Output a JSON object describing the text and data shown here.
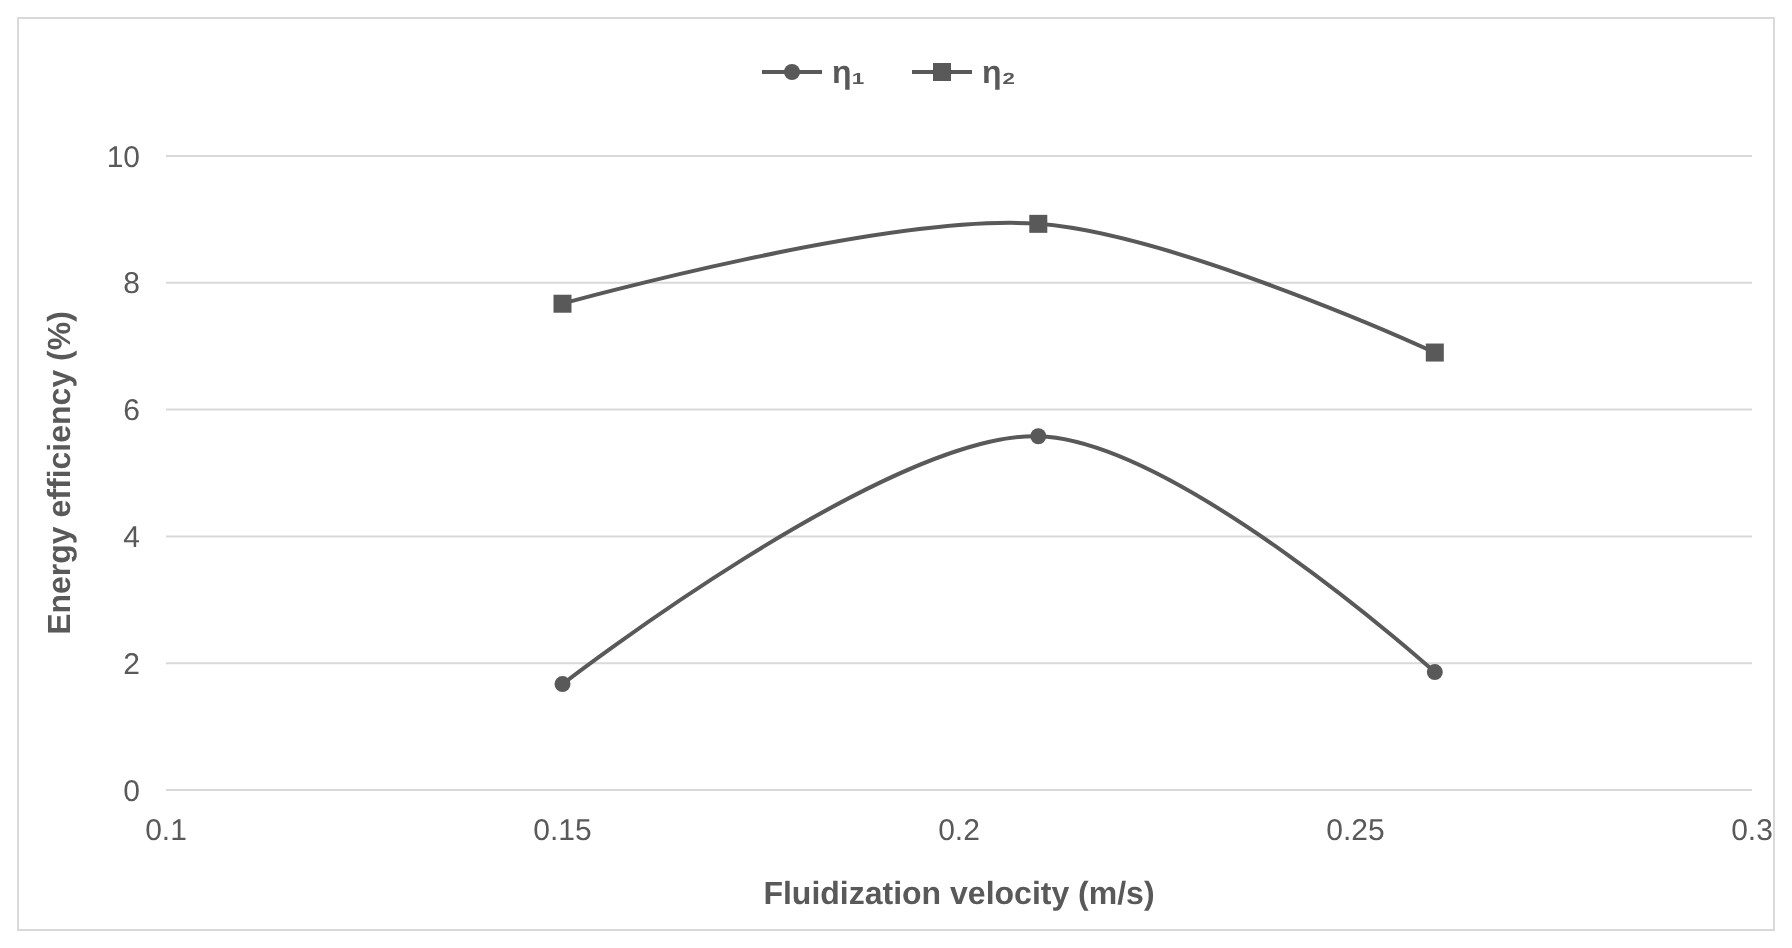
{
  "chart_data": {
    "type": "line",
    "xlabel": "Fluidization velocity (m/s)",
    "ylabel": "Energy efficiency (%)",
    "x": [
      0.15,
      0.21,
      0.26
    ],
    "series": [
      {
        "name": "η₁",
        "color": "#595959",
        "values": [
          1.67,
          5.58,
          1.86
        ],
        "marker": "circle"
      },
      {
        "name": "η₂",
        "color": "#595959",
        "values": [
          7.67,
          8.93,
          6.9
        ],
        "marker": "square"
      }
    ],
    "xlim": [
      0.1,
      0.3
    ],
    "xticks": [
      0.1,
      0.15,
      0.2,
      0.25,
      0.3
    ],
    "ylim": [
      0,
      10
    ],
    "yticks": [
      0,
      2,
      4,
      6,
      8,
      10
    ],
    "grid": "y",
    "legend": "top"
  }
}
